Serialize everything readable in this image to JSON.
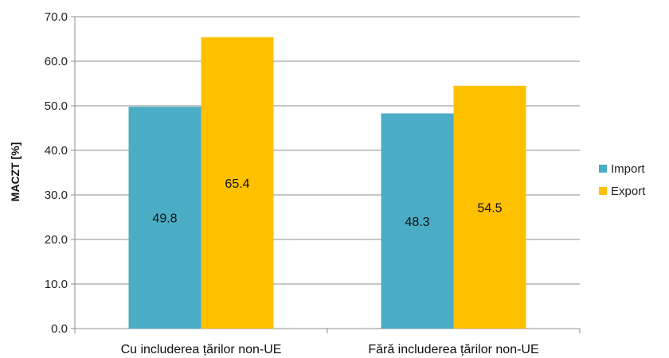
{
  "chart_data": {
    "type": "bar",
    "categories": [
      "Cu includerea țărilor non-UE",
      "Fără includerea țărilor non-UE"
    ],
    "series": [
      {
        "name": "Import",
        "values": [
          49.8,
          48.3
        ],
        "color": "#4BACC6"
      },
      {
        "name": "Export",
        "values": [
          65.4,
          54.5
        ],
        "color": "#FFC000"
      }
    ],
    "ylabel": "MACZT [%]",
    "ylim": [
      0,
      70
    ],
    "yticks": [
      "0.0",
      "10.0",
      "20.0",
      "30.0",
      "40.0",
      "50.0",
      "60.0",
      "70.0"
    ],
    "grid": true,
    "legend_position": "right"
  }
}
